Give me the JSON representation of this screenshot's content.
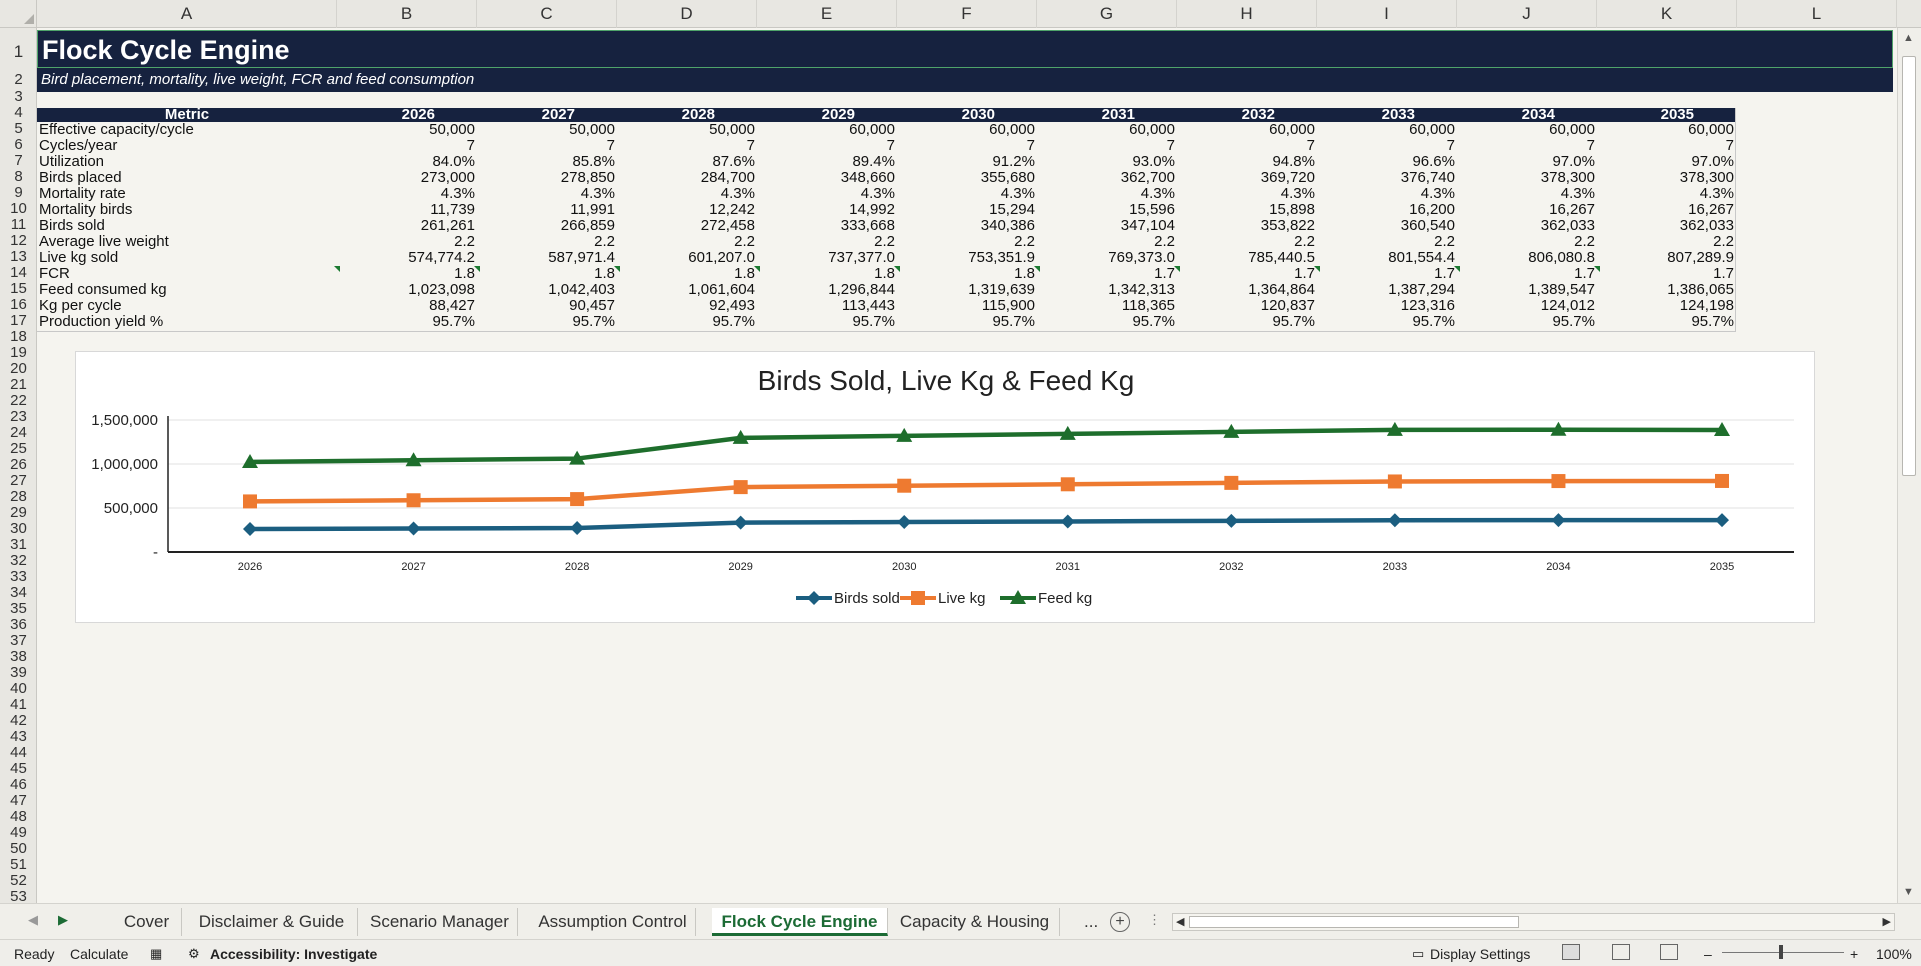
{
  "columns": [
    "A",
    "B",
    "C",
    "D",
    "E",
    "F",
    "G",
    "H",
    "I",
    "J",
    "K",
    "L"
  ],
  "title": "Flock Cycle Engine",
  "subtitle": "Bird placement, mortality, live weight, FCR and feed consumption",
  "table": {
    "header_metric": "Metric",
    "years": [
      "2026",
      "2027",
      "2028",
      "2029",
      "2030",
      "2031",
      "2032",
      "2033",
      "2034",
      "2035"
    ],
    "rows": [
      {
        "metric": "Effective capacity/cycle",
        "values": [
          "50,000",
          "50,000",
          "50,000",
          "60,000",
          "60,000",
          "60,000",
          "60,000",
          "60,000",
          "60,000",
          "60,000"
        ]
      },
      {
        "metric": "Cycles/year",
        "values": [
          "7",
          "7",
          "7",
          "7",
          "7",
          "7",
          "7",
          "7",
          "7",
          "7"
        ]
      },
      {
        "metric": "Utilization",
        "values": [
          "84.0%",
          "85.8%",
          "87.6%",
          "89.4%",
          "91.2%",
          "93.0%",
          "94.8%",
          "96.6%",
          "97.0%",
          "97.0%"
        ]
      },
      {
        "metric": "Birds placed",
        "values": [
          "273,000",
          "278,850",
          "284,700",
          "348,660",
          "355,680",
          "362,700",
          "369,720",
          "376,740",
          "378,300",
          "378,300"
        ]
      },
      {
        "metric": "Mortality rate",
        "values": [
          "4.3%",
          "4.3%",
          "4.3%",
          "4.3%",
          "4.3%",
          "4.3%",
          "4.3%",
          "4.3%",
          "4.3%",
          "4.3%"
        ]
      },
      {
        "metric": "Mortality birds",
        "values": [
          "11,739",
          "11,991",
          "12,242",
          "14,992",
          "15,294",
          "15,596",
          "15,898",
          "16,200",
          "16,267",
          "16,267"
        ]
      },
      {
        "metric": "Birds sold",
        "values": [
          "261,261",
          "266,859",
          "272,458",
          "333,668",
          "340,386",
          "347,104",
          "353,822",
          "360,540",
          "362,033",
          "362,033"
        ]
      },
      {
        "metric": "Average live weight",
        "values": [
          "2.2",
          "2.2",
          "2.2",
          "2.2",
          "2.2",
          "2.2",
          "2.2",
          "2.2",
          "2.2",
          "2.2"
        ]
      },
      {
        "metric": "Live kg sold",
        "values": [
          "574,774.2",
          "587,971.4",
          "601,207.0",
          "737,377.0",
          "753,351.9",
          "769,373.0",
          "785,440.5",
          "801,554.4",
          "806,080.8",
          "807,289.9"
        ]
      },
      {
        "metric": "FCR",
        "values": [
          "1.8",
          "1.8",
          "1.8",
          "1.8",
          "1.8",
          "1.7",
          "1.7",
          "1.7",
          "1.7",
          "1.7"
        ],
        "flag": true
      },
      {
        "metric": "Feed consumed kg",
        "values": [
          "1,023,098",
          "1,042,403",
          "1,061,604",
          "1,296,844",
          "1,319,639",
          "1,342,313",
          "1,364,864",
          "1,387,294",
          "1,389,547",
          "1,386,065"
        ]
      },
      {
        "metric": "Kg per cycle",
        "values": [
          "88,427",
          "90,457",
          "92,493",
          "113,443",
          "115,900",
          "118,365",
          "120,837",
          "123,316",
          "124,012",
          "124,198"
        ]
      },
      {
        "metric": "Production yield %",
        "values": [
          "95.7%",
          "95.7%",
          "95.7%",
          "95.7%",
          "95.7%",
          "95.7%",
          "95.7%",
          "95.7%",
          "95.7%",
          "95.7%"
        ]
      }
    ]
  },
  "chart_data": {
    "type": "line",
    "title": "Birds Sold, Live Kg & Feed Kg",
    "categories": [
      "2026",
      "2027",
      "2028",
      "2029",
      "2030",
      "2031",
      "2032",
      "2033",
      "2034",
      "2035"
    ],
    "ylim": [
      0,
      1500000
    ],
    "yticks": [
      0,
      500000,
      1000000,
      1500000
    ],
    "ytick_labels": [
      "-",
      "500,000",
      "1,000,000",
      "1,500,000"
    ],
    "grid": true,
    "legend": "bottom",
    "series": [
      {
        "name": "Birds sold",
        "color": "#1b5e80",
        "marker": "diamond",
        "values": [
          261261,
          266859,
          272458,
          333668,
          340386,
          347104,
          353822,
          360540,
          362033,
          362033
        ]
      },
      {
        "name": "Live kg",
        "color": "#ee7a30",
        "marker": "square",
        "values": [
          574774.2,
          587971.4,
          601207.0,
          737377.0,
          753351.9,
          769373.0,
          785440.5,
          801554.4,
          806080.8,
          807289.9
        ]
      },
      {
        "name": "Feed kg",
        "color": "#1e6e2c",
        "marker": "triangle",
        "values": [
          1023098,
          1042403,
          1061604,
          1296844,
          1319639,
          1342313,
          1364864,
          1387294,
          1389547,
          1386065
        ]
      }
    ]
  },
  "sheet_tabs": [
    "Cover",
    "Disclaimer & Guide",
    "Scenario Manager",
    "Assumption Control",
    "Flock Cycle Engine",
    "Capacity & Housing"
  ],
  "active_tab": "Flock Cycle Engine",
  "more_tabs": "...",
  "status": {
    "ready": "Ready",
    "calculate": "Calculate",
    "accessibility": "Accessibility: Investigate",
    "display_settings": "Display Settings",
    "zoom": "100%"
  }
}
